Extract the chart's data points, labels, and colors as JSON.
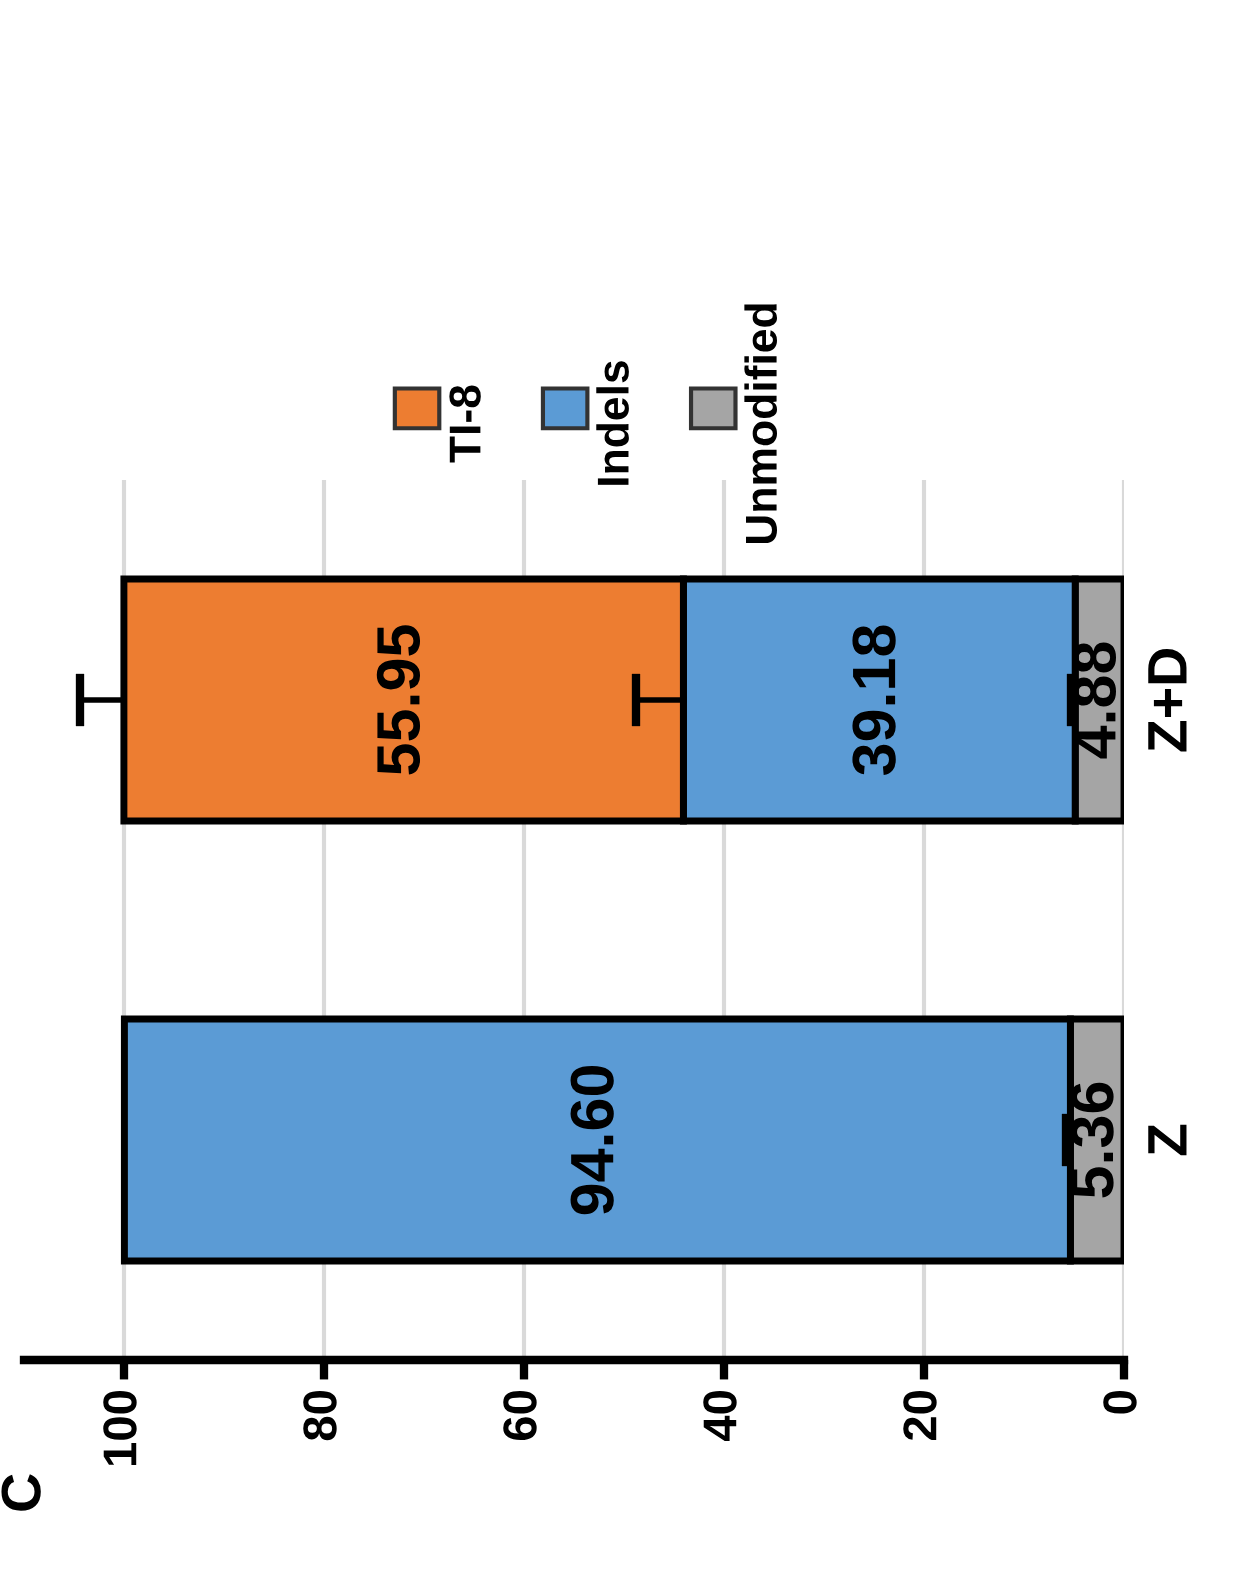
{
  "chart_data": {
    "type": "bar",
    "orientation": "horizontal",
    "stacked": true,
    "categories": [
      "Z+D",
      "Z"
    ],
    "series": [
      {
        "name": "Unmodified",
        "color": "#a5a5a5",
        "values": [
          4.88,
          5.36
        ],
        "value_labels": [
          "4.88",
          "5.36"
        ],
        "errors": [
          [
            4.88,
            5.3
          ],
          [
            5.36,
            5.8
          ]
        ]
      },
      {
        "name": "Indels",
        "color": "#5b9bd5",
        "values": [
          39.18,
          94.6
        ],
        "value_labels": [
          "39.18",
          "94.60"
        ],
        "errors": [
          [
            44.06,
            48.8
          ],
          null
        ]
      },
      {
        "name": "TI-8",
        "color": "#ed7d31",
        "values": [
          55.95,
          null
        ],
        "value_labels": [
          "55.95",
          null
        ],
        "errors": [
          [
            100.01,
            104.4
          ],
          null
        ]
      }
    ],
    "xlim": [
      110,
      0
    ],
    "xticks": [
      0,
      20,
      40,
      60,
      80,
      100
    ],
    "grid": "x",
    "legend": "top",
    "annotations": [
      "C"
    ]
  }
}
